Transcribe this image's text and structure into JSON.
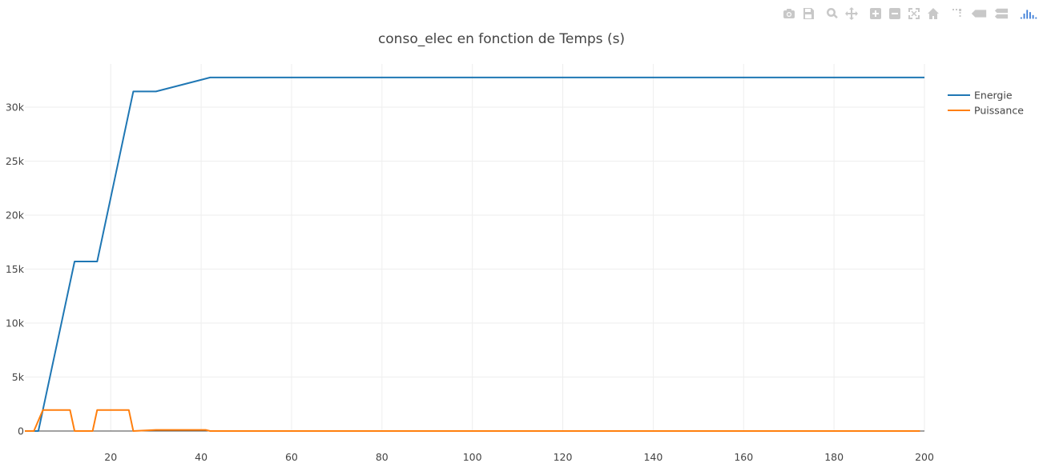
{
  "toolbar": {
    "buttons": [
      {
        "name": "camera-icon"
      },
      {
        "name": "save-icon"
      },
      {
        "name": "zoom-icon"
      },
      {
        "name": "pan-icon"
      },
      {
        "name": "zoom-in-icon"
      },
      {
        "name": "zoom-out-icon"
      },
      {
        "name": "autoscale-icon"
      },
      {
        "name": "home-icon"
      },
      {
        "name": "spike-lines-icon"
      },
      {
        "name": "hover-closest-icon"
      },
      {
        "name": "hover-compare-icon"
      },
      {
        "name": "plotly-logo-icon"
      }
    ]
  },
  "chart_data": {
    "type": "line",
    "title": "conso_elec en fonction de Temps (s)",
    "xlabel": "",
    "ylabel": "",
    "xlim": [
      1,
      200
    ],
    "ylim": [
      0,
      34000
    ],
    "x_ticks": [
      20,
      40,
      60,
      80,
      100,
      120,
      140,
      160,
      180,
      200
    ],
    "y_ticks": [
      0,
      5000,
      10000,
      15000,
      20000,
      25000,
      30000
    ],
    "y_tick_labels": [
      "0",
      "5k",
      "10k",
      "15k",
      "20k",
      "25k",
      "30k"
    ],
    "grid": true,
    "legend_position": "top-right",
    "series": [
      {
        "name": "Energie",
        "color": "#1f77b4",
        "x": [
          1,
          4,
          12,
          17,
          25,
          30,
          42,
          200
        ],
        "y": [
          0,
          0,
          15700,
          15700,
          31450,
          31450,
          32750,
          32750
        ]
      },
      {
        "name": "Puissance",
        "color": "#ff7f0e",
        "x": [
          1,
          3,
          5,
          11,
          12,
          16,
          17,
          24,
          25,
          30,
          41,
          42,
          199
        ],
        "y": [
          0,
          0,
          1950,
          1950,
          0,
          0,
          1950,
          1950,
          0,
          100,
          100,
          0,
          0
        ]
      }
    ]
  }
}
